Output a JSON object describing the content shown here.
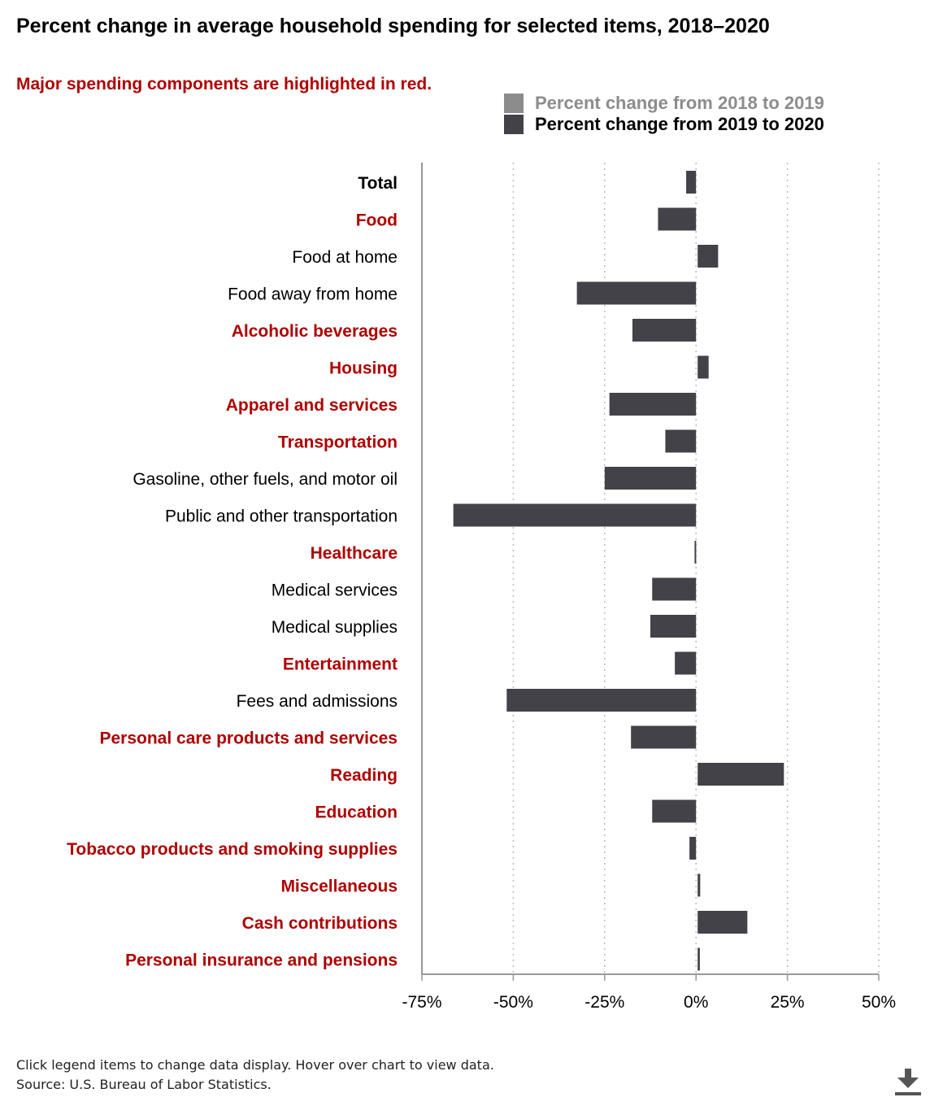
{
  "title": "Percent change in average household spending for selected items, 2018–2020",
  "subtitle": "Major spending components are highlighted in red.",
  "colors": {
    "highlight": "#b00000",
    "normal": "#000000",
    "series_2018_2019": "#8c8c8c",
    "series_2019_2020": "#424248",
    "gridline": "#bbbbbb",
    "axis": "#999999"
  },
  "legend": [
    {
      "label": "Percent change from 2018 to 2019",
      "color": "#8c8c8c",
      "active": false
    },
    {
      "label": "Percent change from 2019 to 2020",
      "color": "#424248",
      "active": true
    }
  ],
  "footer": {
    "note": "Click legend items to change data display. Hover over chart to view data.",
    "source": "Source: U.S. Bureau of Labor Statistics."
  },
  "download_icon": "download-icon",
  "chart_data": {
    "type": "bar",
    "orientation": "horizontal",
    "title": "Percent change in average household spending for selected items, 2018–2020",
    "xlabel": "",
    "ylabel": "",
    "xlim": [
      -75,
      50
    ],
    "xticks": [
      -75,
      -50,
      -25,
      0,
      25,
      50
    ],
    "xtick_labels": [
      "-75%",
      "-50%",
      "-25%",
      "0%",
      "25%",
      "50%"
    ],
    "grid": true,
    "categories": [
      {
        "label": "Total",
        "style": "total"
      },
      {
        "label": "Food",
        "style": "major"
      },
      {
        "label": "Food at home",
        "style": "sub"
      },
      {
        "label": "Food away from home",
        "style": "sub"
      },
      {
        "label": "Alcoholic beverages",
        "style": "major"
      },
      {
        "label": "Housing",
        "style": "major"
      },
      {
        "label": "Apparel and services",
        "style": "major"
      },
      {
        "label": "Transportation",
        "style": "major"
      },
      {
        "label": "Gasoline, other fuels, and motor oil",
        "style": "sub"
      },
      {
        "label": "Public and other transportation",
        "style": "sub"
      },
      {
        "label": "Healthcare",
        "style": "major"
      },
      {
        "label": "Medical services",
        "style": "sub"
      },
      {
        "label": "Medical supplies",
        "style": "sub"
      },
      {
        "label": "Entertainment",
        "style": "major"
      },
      {
        "label": "Fees and admissions",
        "style": "sub"
      },
      {
        "label": "Personal care products and services",
        "style": "major"
      },
      {
        "label": "Reading",
        "style": "major"
      },
      {
        "label": "Education",
        "style": "major"
      },
      {
        "label": "Tobacco products and smoking supplies",
        "style": "major"
      },
      {
        "label": "Miscellaneous",
        "style": "major"
      },
      {
        "label": "Cash contributions",
        "style": "major"
      },
      {
        "label": "Personal insurance and pensions",
        "style": "major"
      }
    ],
    "series": [
      {
        "name": "Percent change from 2019 to 2020",
        "values": [
          -2.7,
          -10.4,
          5.6,
          -32.6,
          -17.4,
          3.0,
          -23.7,
          -8.4,
          -25.0,
          -66.4,
          -0.4,
          -12.0,
          -12.5,
          -5.8,
          -51.8,
          -17.8,
          23.6,
          -12.0,
          -1.8,
          0.7,
          13.6,
          0.6
        ]
      }
    ]
  }
}
